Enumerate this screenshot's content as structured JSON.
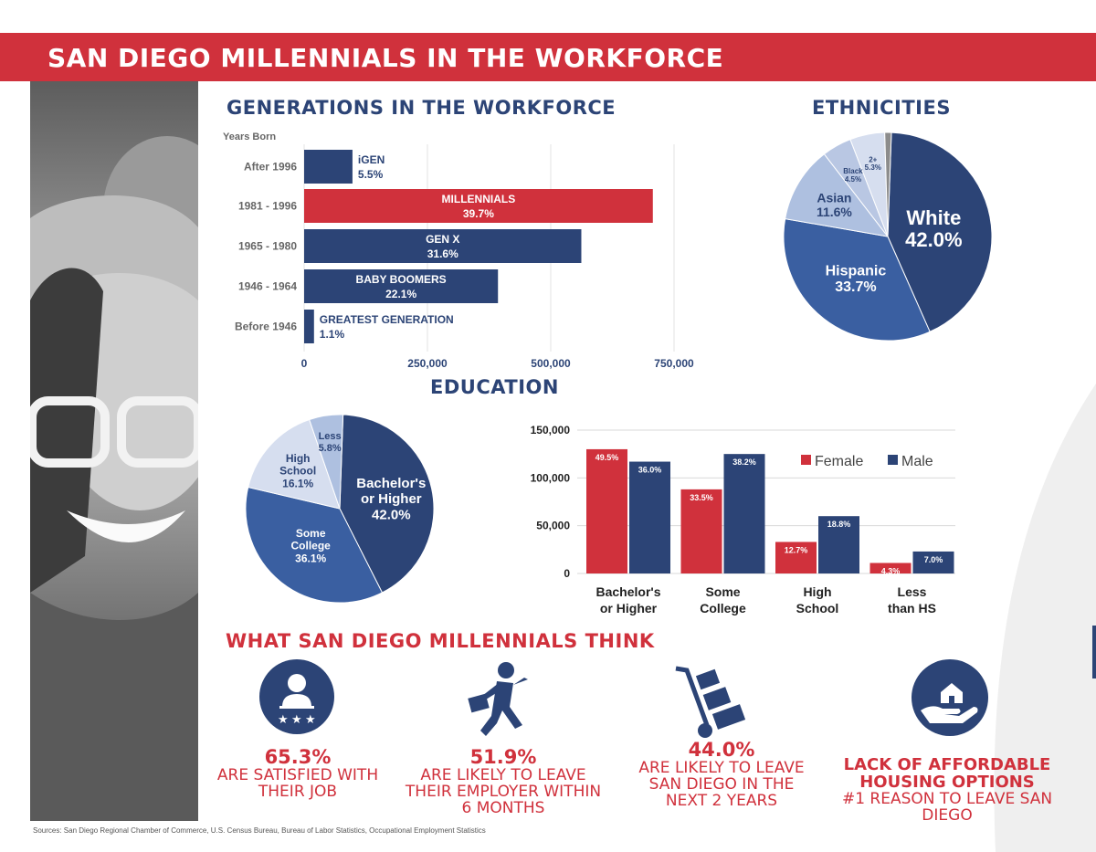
{
  "banner": {
    "title": "SAN DIEGO MILLENNIALS IN THE WORKFORCE"
  },
  "colors": {
    "red": "#d0313c",
    "navy": "#2c4476",
    "blue": "#3a5fa1",
    "light_blue": "#aec0e0",
    "pale": "#d6deef",
    "grey": "#8c8c8c"
  },
  "chart_data": [
    {
      "type": "bar",
      "orientation": "horizontal",
      "title": "GENERATIONS IN THE WORKFORCE",
      "ylabel": "Years Born",
      "categories": [
        "After 1996",
        "1981 - 1996",
        "1965 - 1980",
        "1946 - 1964",
        "Before 1946"
      ],
      "bar_labels": [
        "iGEN",
        "MILLENNIALS",
        "GEN X",
        "BABY BOOMERS",
        "GREATEST GENERATION"
      ],
      "percent_labels": [
        "5.5%",
        "39.7%",
        "31.6%",
        "22.1%",
        "1.1%"
      ],
      "values": [
        98000,
        707000,
        562000,
        393000,
        20000
      ],
      "highlight": "MILLENNIALS",
      "xticks": [
        "0",
        "250,000",
        "500,000",
        "750,000"
      ],
      "xlim": [
        0,
        800000
      ]
    },
    {
      "type": "pie",
      "title": "ETHNICITIES",
      "slices": [
        {
          "label": "White",
          "value": 42.0,
          "value_label": "42.0%"
        },
        {
          "label": "Hispanic",
          "value": 33.7,
          "value_label": "33.7%"
        },
        {
          "label": "Asian",
          "value": 11.6,
          "value_label": "11.6%"
        },
        {
          "label": "Black",
          "value": 4.5,
          "value_label": "4.5%"
        },
        {
          "label": "2+",
          "value": 5.3,
          "value_label": "5.3%"
        },
        {
          "label": "",
          "value": 1.0,
          "value_label": ""
        }
      ]
    },
    {
      "type": "pie",
      "title": "EDUCATION",
      "slices": [
        {
          "label": "Bachelor's or Higher",
          "value": 42.0,
          "value_label": "42.0%"
        },
        {
          "label": "Some College",
          "value": 36.1,
          "value_label": "36.1%"
        },
        {
          "label": "High School",
          "value": 16.1,
          "value_label": "16.1%"
        },
        {
          "label": "Less",
          "value": 5.8,
          "value_label": "5.8%"
        }
      ]
    },
    {
      "type": "bar",
      "categories": [
        "Bachelor's or Higher",
        "Some College",
        "High School",
        "Less than HS"
      ],
      "series": [
        {
          "name": "Female",
          "values": [
            130000,
            88000,
            33000,
            11000
          ],
          "labels": [
            "49.5%",
            "33.5%",
            "12.7%",
            "4.3%"
          ]
        },
        {
          "name": "Male",
          "values": [
            117000,
            125000,
            60000,
            23000
          ],
          "labels": [
            "36.0%",
            "38.2%",
            "18.8%",
            "7.0%"
          ]
        }
      ],
      "yticks": [
        "0",
        "50,000",
        "100,000",
        "150,000"
      ],
      "ylim": [
        0,
        150000
      ],
      "legend": "top-right"
    }
  ],
  "think": {
    "title": "WHAT SAN DIEGO MILLENNIALS THINK",
    "stats": [
      {
        "value": "65.3%",
        "text": "ARE SATISFIED WITH THEIR JOB",
        "icon": "rated-employee-icon"
      },
      {
        "value": "51.9%",
        "text": "ARE LIKELY TO LEAVE THEIR EMPLOYER WITHIN 6 MONTHS",
        "icon": "running-man-briefcase-icon"
      },
      {
        "value": "44.0%",
        "text": "ARE LIKELY TO LEAVE SAN DIEGO IN THE NEXT 2 YEARS",
        "icon": "hand-truck-boxes-icon"
      },
      {
        "value": "LACK OF AFFORDABLE HOUSING OPTIONS",
        "text": "#1 REASON TO LEAVE SAN DIEGO",
        "icon": "house-in-hand-icon"
      }
    ]
  },
  "sources": "Sources: San Diego Regional Chamber of Commerce, U.S. Census Bureau, Bureau of Labor Statistics, Occupational Employment Statistics"
}
